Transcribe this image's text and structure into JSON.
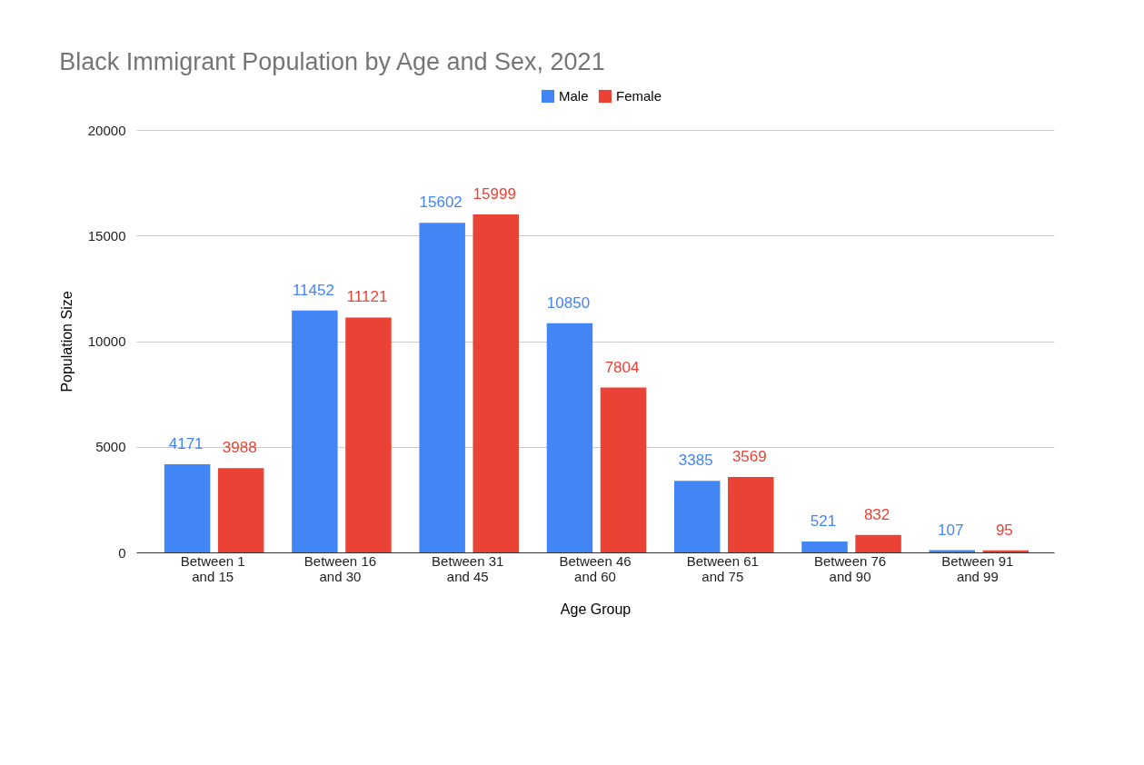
{
  "chart_data": {
    "type": "bar",
    "title": "Black Immigrant Population by Age and Sex, 2021",
    "xlabel": "Age Group",
    "ylabel": "Population Size",
    "categories": [
      "Between 1 and 15",
      "Between 16 and 30",
      "Between 31 and 45",
      "Between 46 and 60",
      "Between 61 and 75",
      "Between 76 and 90",
      "Between 91 and 99"
    ],
    "series": [
      {
        "name": "Male",
        "color": "#4285f4",
        "values": [
          4171,
          11452,
          15602,
          10850,
          3385,
          521,
          107
        ]
      },
      {
        "name": "Female",
        "color": "#ea4335",
        "values": [
          3988,
          11121,
          15999,
          7804,
          3569,
          832,
          95
        ]
      }
    ],
    "ylim": [
      0,
      20000
    ],
    "yticks": [
      0,
      5000,
      10000,
      15000,
      20000
    ],
    "grid": "y",
    "legend": "top",
    "data_labels": true
  }
}
